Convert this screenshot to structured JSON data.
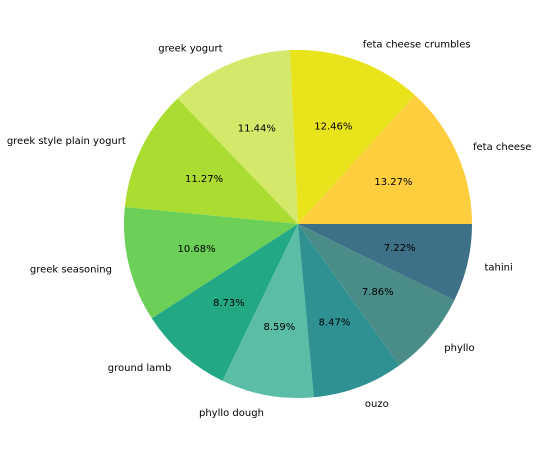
{
  "chart_data": {
    "type": "pie",
    "title": "",
    "start_angle_deg": 0,
    "direction": "counterclockwise",
    "slices": [
      {
        "label": "feta cheese",
        "value": 13.27,
        "pct_text": "13.27%",
        "color": "#ffce3f"
      },
      {
        "label": "feta cheese crumbles",
        "value": 12.46,
        "pct_text": "12.46%",
        "color": "#e8e31a"
      },
      {
        "label": "greek yogurt",
        "value": 11.44,
        "pct_text": "11.44%",
        "color": "#d4e86a"
      },
      {
        "label": "greek style plain yogurt",
        "value": 11.27,
        "pct_text": "11.27%",
        "color": "#abdc32"
      },
      {
        "label": "greek seasoning",
        "value": 10.68,
        "pct_text": "10.68%",
        "color": "#6bcf58"
      },
      {
        "label": "ground lamb",
        "value": 8.73,
        "pct_text": "8.73%",
        "color": "#22a884"
      },
      {
        "label": "phyllo dough",
        "value": 8.59,
        "pct_text": "8.59%",
        "color": "#5bbda6"
      },
      {
        "label": "ouzo",
        "value": 8.47,
        "pct_text": "8.47%",
        "color": "#309193"
      },
      {
        "label": "phyllo",
        "value": 7.86,
        "pct_text": "7.86%",
        "color": "#4a8c88"
      },
      {
        "label": "tahini",
        "value": 7.22,
        "pct_text": "7.22%",
        "color": "#3e7087"
      }
    ]
  }
}
